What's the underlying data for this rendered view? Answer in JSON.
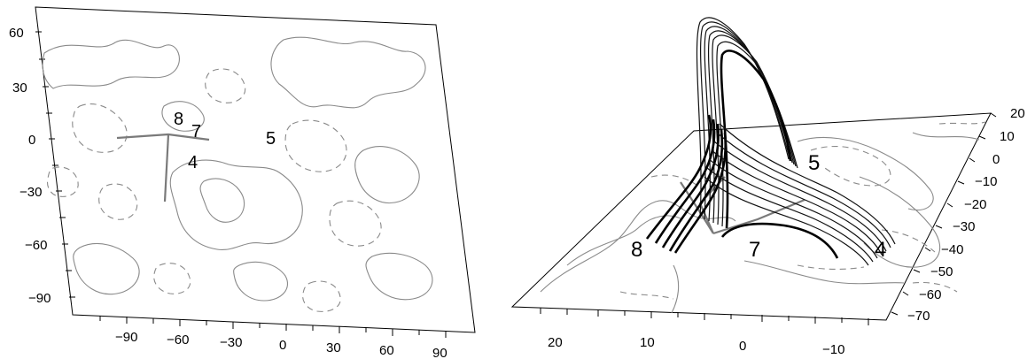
{
  "left_panel": {
    "y_ticks": [
      "60",
      "30",
      "0",
      "−30",
      "−60",
      "−90"
    ],
    "x_ticks": [
      "−90",
      "−60",
      "−30",
      "0",
      "30",
      "60",
      "90"
    ],
    "labels": {
      "region_8": "8",
      "region_7": "7",
      "region_5": "5",
      "region_4": "4"
    }
  },
  "right_panel": {
    "x_ticks": [
      "20",
      "10",
      "0",
      "−10"
    ],
    "y_ticks": [
      "20",
      "10",
      "0",
      "−10",
      "−20",
      "−30",
      "−40",
      "−50",
      "−60",
      "−70"
    ],
    "labels": {
      "region_5": "5",
      "region_8": "8",
      "region_7": "7",
      "region_4": "4"
    }
  }
}
